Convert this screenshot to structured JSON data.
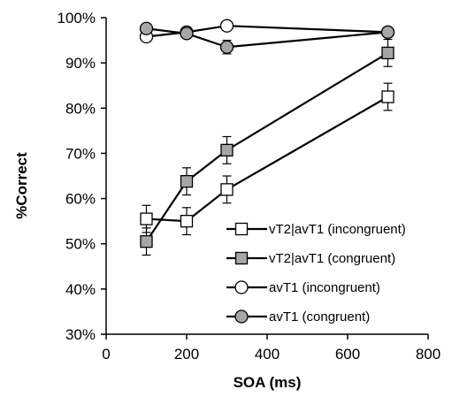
{
  "chart_data": {
    "type": "line",
    "title": "",
    "xlabel": "SOA (ms)",
    "ylabel": "%Correct",
    "xlim": [
      0,
      800
    ],
    "ylim": [
      30,
      100
    ],
    "x_ticks": [
      0,
      200,
      400,
      600,
      800
    ],
    "y_ticks": [
      30,
      40,
      50,
      60,
      70,
      80,
      90,
      100
    ],
    "x_tick_labels": [
      "0",
      "200",
      "400",
      "600",
      "800"
    ],
    "y_tick_labels": [
      "30%",
      "40%",
      "50%",
      "60%",
      "70%",
      "80%",
      "90%",
      "100%"
    ],
    "grid": false,
    "legend_position": "lower-right",
    "series": [
      {
        "name": "vT2|avT1 (incongruent)",
        "marker": "square",
        "fill": "#ffffff",
        "x": [
          100,
          200,
          300,
          700
        ],
        "y": [
          55.5,
          55,
          62,
          82.5
        ],
        "err": [
          3.0,
          3.0,
          3.0,
          3.0
        ]
      },
      {
        "name": "vT2|avT1 (congruent)",
        "marker": "square",
        "fill": "#a6a6a6",
        "x": [
          100,
          200,
          300,
          700
        ],
        "y": [
          50.5,
          63.8,
          70.7,
          92.2
        ],
        "err": [
          3.0,
          3.0,
          3.0,
          3.0
        ]
      },
      {
        "name": "avT1 (incongruent)",
        "marker": "circle",
        "fill": "#ffffff",
        "x": [
          100,
          200,
          300,
          700
        ],
        "y": [
          95.8,
          96.8,
          98.2,
          96.8
        ],
        "err": [
          1.0,
          1.0,
          1.0,
          1.0
        ]
      },
      {
        "name": "avT1 (congruent)",
        "marker": "circle",
        "fill": "#a6a6a6",
        "x": [
          100,
          200,
          300,
          700
        ],
        "y": [
          97.6,
          96.5,
          93.5,
          96.8
        ],
        "err": [
          1.0,
          1.0,
          1.5,
          1.0
        ]
      }
    ]
  }
}
